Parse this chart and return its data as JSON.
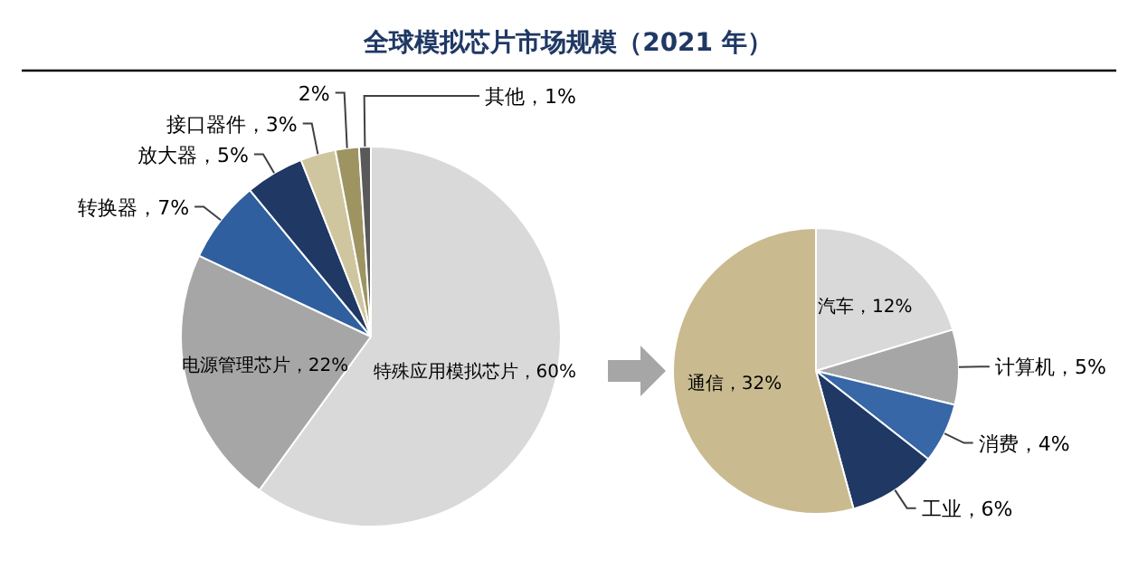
{
  "chart_data": [
    {
      "type": "pie",
      "title": "全球模拟芯片市场规模（2021 年）",
      "categories": [
        "特殊应用模拟芯片",
        "电源管理芯片",
        "转换器",
        "放大器",
        "接口器件",
        null,
        "其他"
      ],
      "values": [
        60,
        22,
        7,
        5,
        3,
        2,
        1
      ],
      "colors": [
        "#d9d9d9",
        "#a6a6a6",
        "#2f5f9e",
        "#1f3864",
        "#cfc6a0",
        "#9e9462",
        "#595959"
      ],
      "value_labels": [
        "60%",
        "22%",
        "7%",
        "5%",
        "3%",
        "2%",
        "1%"
      ]
    },
    {
      "type": "pie",
      "categories": [
        "汽车",
        "计算机",
        "消费",
        "工业",
        "通信"
      ],
      "values": [
        12,
        5,
        4,
        6,
        32
      ],
      "colors": [
        "#d9d9d9",
        "#a6a6a6",
        "#3767a6",
        "#1f3864",
        "#c9bb8f"
      ],
      "value_labels": [
        "12%",
        "5%",
        "4%",
        "6%",
        "32%"
      ]
    }
  ]
}
